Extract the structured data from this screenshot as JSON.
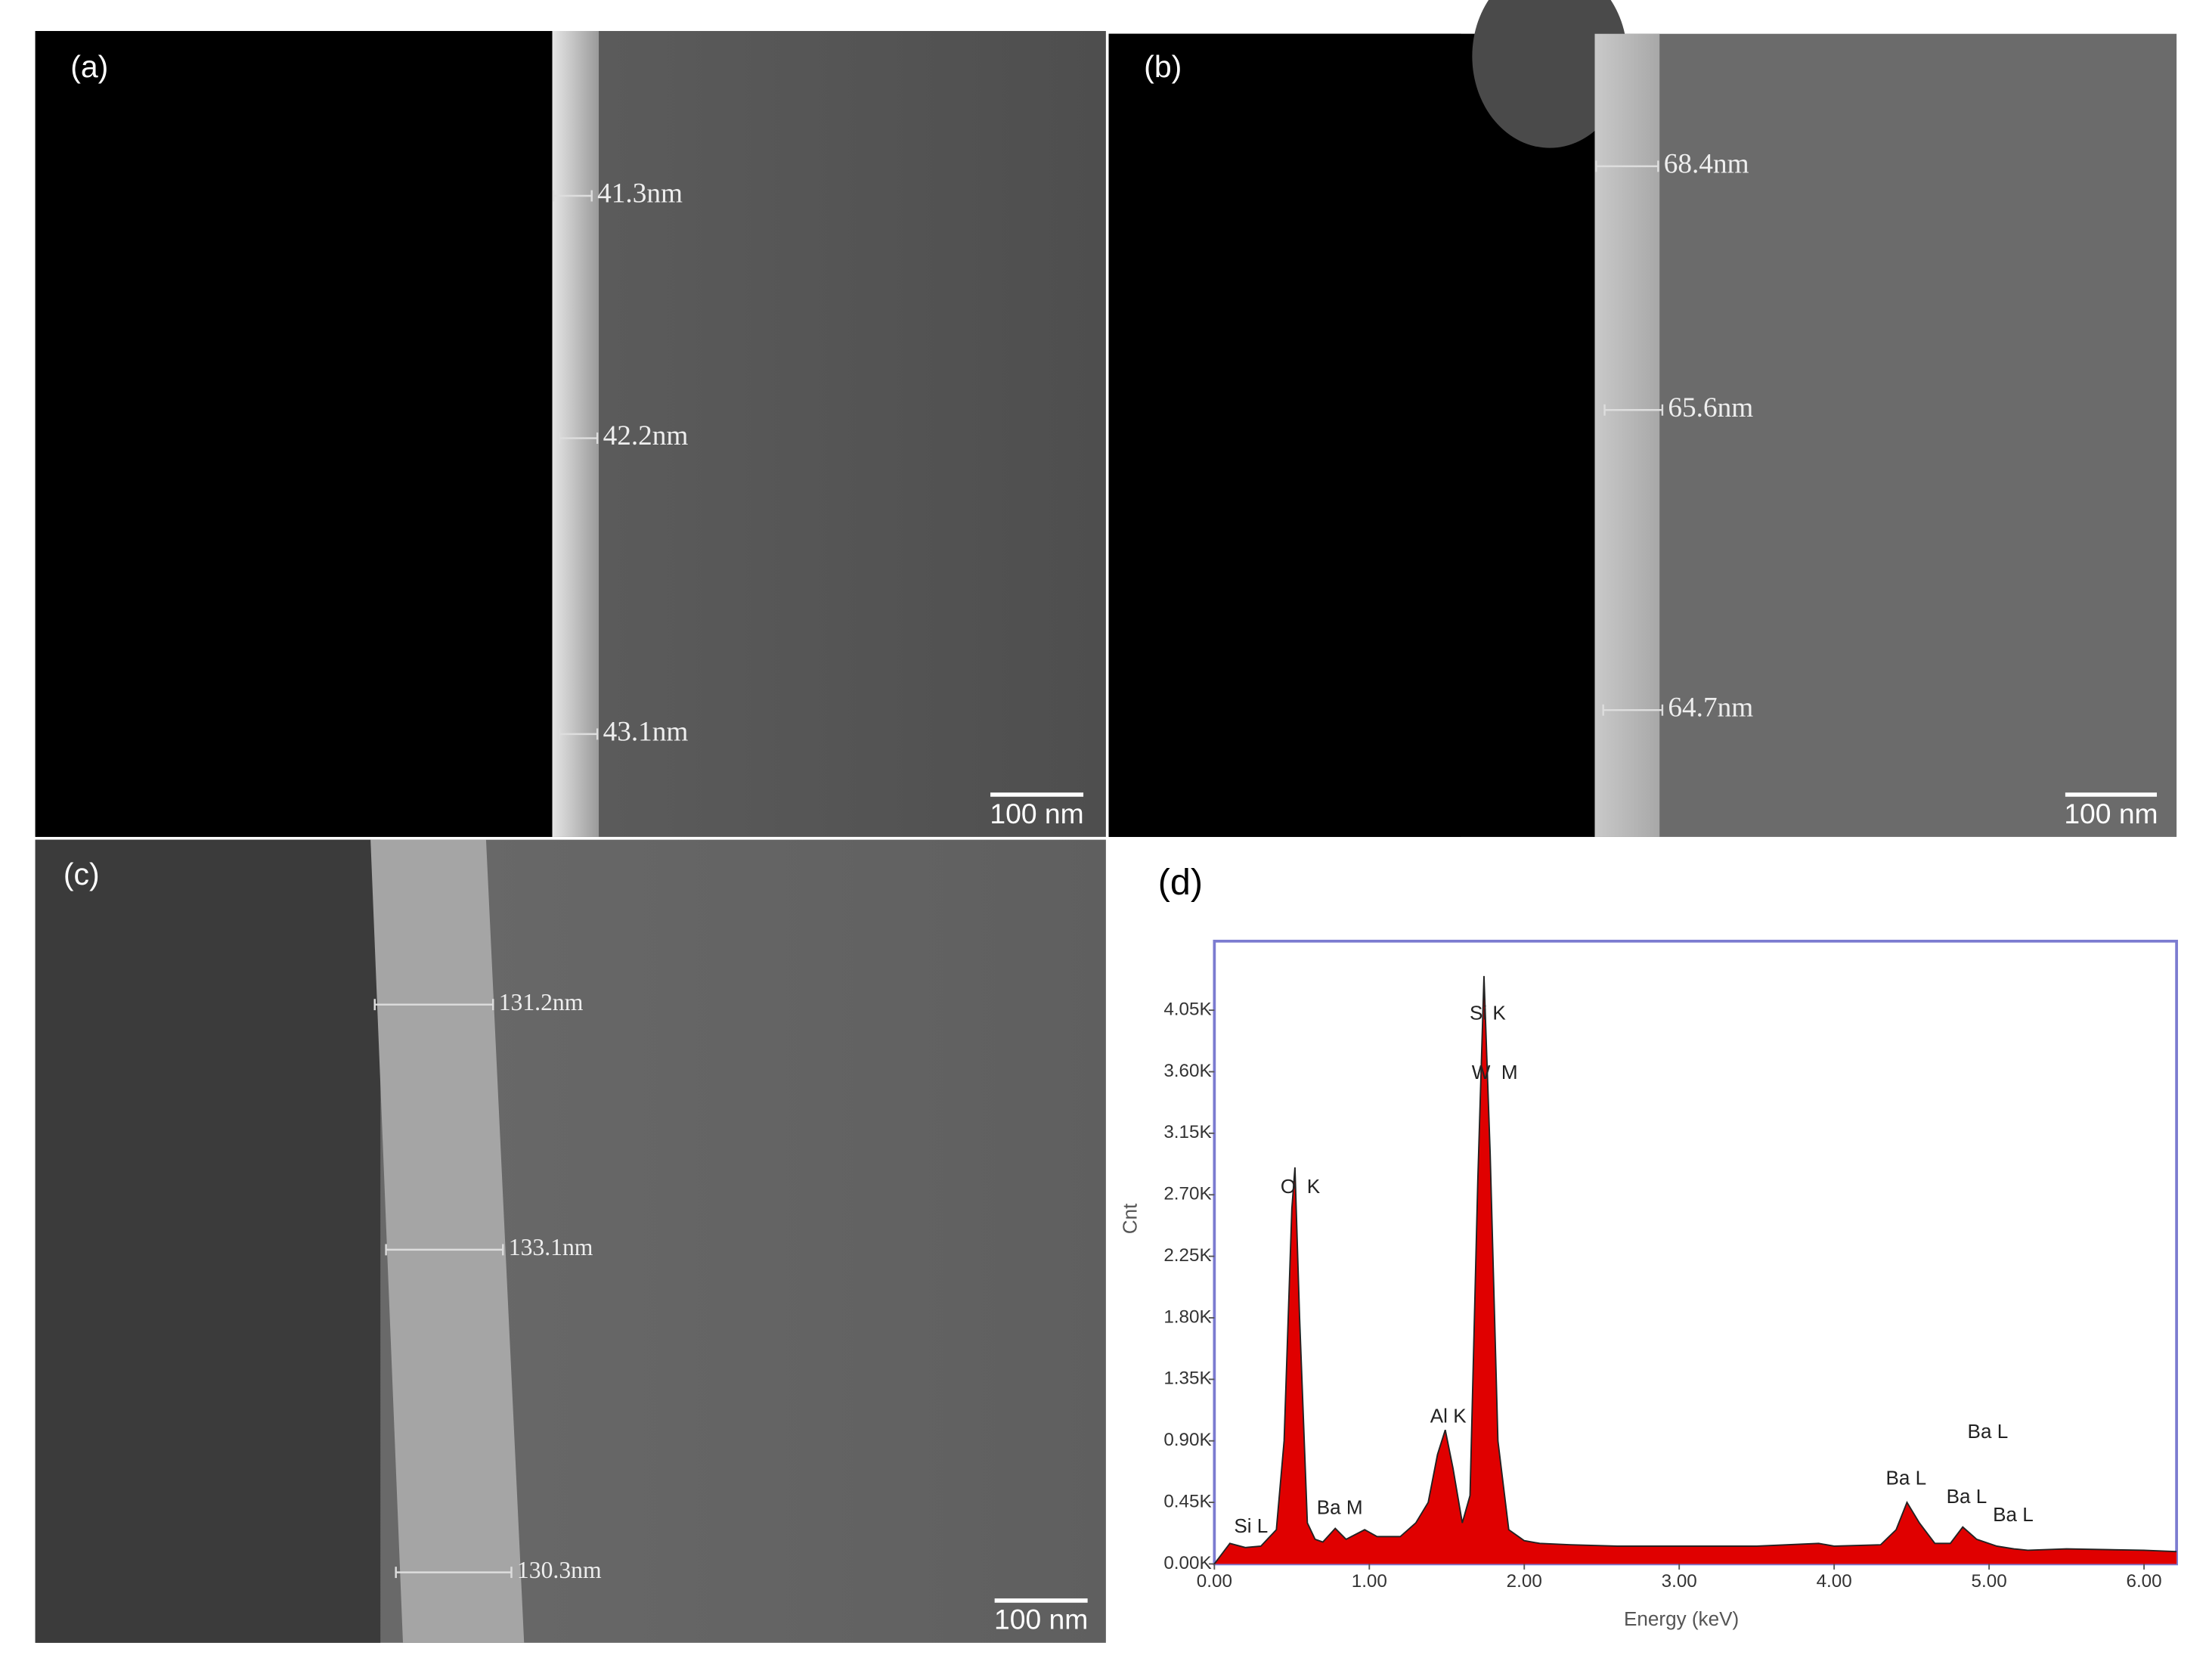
{
  "panels": [
    {
      "label": "(a)",
      "measurements": [
        "41.3nm",
        "42.2nm",
        "43.1nm"
      ],
      "scale_bar": "100 nm"
    },
    {
      "label": "(b)",
      "measurements": [
        "68.4nm",
        "65.6nm",
        "64.7nm"
      ],
      "scale_bar": "100 nm"
    },
    {
      "label": "(c)",
      "measurements": [
        "131.2nm",
        "133.1nm",
        "130.3nm"
      ],
      "scale_bar": "100 nm"
    }
  ],
  "chart_data": {
    "type": "area",
    "panel_label": "(d)",
    "x_label": "Energy (keV)",
    "y_label": "Cnt",
    "color": "#e00000",
    "x": [
      0,
      0.1,
      0.2,
      0.3,
      0.4,
      0.45,
      0.5,
      0.52,
      0.55,
      0.6,
      0.65,
      0.7,
      0.78,
      0.85,
      0.97,
      1.05,
      1.2,
      1.3,
      1.38,
      1.44,
      1.49,
      1.54,
      1.6,
      1.65,
      1.7,
      1.74,
      1.78,
      1.83,
      1.9,
      2.0,
      2.1,
      2.3,
      2.6,
      3.0,
      3.5,
      3.9,
      4.0,
      4.3,
      4.4,
      4.47,
      4.55,
      4.65,
      4.75,
      4.83,
      4.92,
      5.05,
      5.16,
      5.25,
      5.5,
      6.0,
      6.21
    ],
    "values": [
      0,
      150,
      120,
      130,
      250,
      900,
      2600,
      2900,
      1800,
      300,
      180,
      160,
      260,
      180,
      250,
      200,
      200,
      300,
      450,
      800,
      980,
      700,
      300,
      500,
      2800,
      4300,
      3000,
      900,
      250,
      170,
      150,
      140,
      130,
      130,
      130,
      150,
      130,
      140,
      250,
      450,
      300,
      150,
      150,
      270,
      180,
      130,
      110,
      100,
      110,
      100,
      90
    ],
    "xlim": [
      0,
      6.21
    ],
    "ylim": [
      0,
      4555
    ],
    "xticks": [
      {
        "value": 0,
        "label": "0.00"
      },
      {
        "value": 1,
        "label": "1.00"
      },
      {
        "value": 2,
        "label": "2.00"
      },
      {
        "value": 3,
        "label": "3.00"
      },
      {
        "value": 4,
        "label": "4.00"
      },
      {
        "value": 5,
        "label": "5.00"
      },
      {
        "value": 6,
        "label": "6.00"
      }
    ],
    "yticks": [
      {
        "value": 0,
        "label": "0.00K"
      },
      {
        "value": 450,
        "label": "0.45K"
      },
      {
        "value": 900,
        "label": "0.90K"
      },
      {
        "value": 1350,
        "label": "1.35K"
      },
      {
        "value": 1800,
        "label": "1.80K"
      },
      {
        "value": 2250,
        "label": "2.25K"
      },
      {
        "value": 2700,
        "label": "2.70K"
      },
      {
        "value": 3150,
        "label": "3.15K"
      },
      {
        "value": 3600,
        "label": "3.60K"
      },
      {
        "value": 4050,
        "label": "4.05K"
      }
    ],
    "annotations": [
      "Si K",
      "W  M",
      "O  K",
      "Al K",
      "Ba M",
      "Si L",
      "Ba L",
      "Ba L",
      "Ba L",
      "Ba L"
    ]
  }
}
